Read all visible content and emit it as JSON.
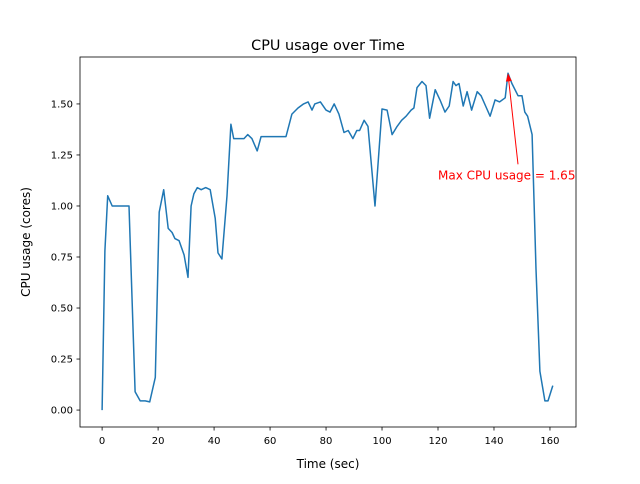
{
  "chart_data": {
    "type": "line",
    "title": "CPU usage over Time",
    "xlabel": "Time (sec)",
    "ylabel": "CPU usage (cores)",
    "xlim": [
      -7.9,
      169.3
    ],
    "ylim": [
      -0.083,
      1.73
    ],
    "xticks": [
      0,
      20,
      40,
      60,
      80,
      100,
      120,
      140,
      160
    ],
    "xtick_labels": [
      "0",
      "20",
      "40",
      "60",
      "80",
      "100",
      "120",
      "140",
      "160"
    ],
    "yticks": [
      0,
      0.25,
      0.5,
      0.75,
      1.0,
      1.25,
      1.5
    ],
    "ytick_labels": [
      "0.00",
      "0.25",
      "0.50",
      "0.75",
      "1.00",
      "1.25",
      "1.50"
    ],
    "grid": false,
    "series": [
      {
        "color": "#1f77b4",
        "x": [
          0,
          1,
          2,
          3.6,
          6.4,
          9.6,
          11.8,
          13.6,
          15.4,
          17,
          19,
          20.4,
          22,
          23.6,
          25,
          26,
          27.5,
          29.3,
          30.7,
          31.8,
          32.8,
          34,
          35.4,
          37,
          38.6,
          40.4,
          41.4,
          42.8,
          44.6,
          46,
          47,
          48.6,
          50.7,
          52,
          53.5,
          55.4,
          56.8,
          65.7,
          67.8,
          70,
          72,
          73.6,
          75,
          76,
          78,
          80,
          81.4,
          82.9,
          84.6,
          86.4,
          87.9,
          89.6,
          91,
          92,
          93.6,
          95,
          97.5,
          100,
          101.8,
          103.6,
          105.4,
          107,
          108.6,
          110.4,
          111.4,
          112.5,
          114.3,
          115.7,
          117,
          119,
          120.7,
          122.5,
          124,
          125.4,
          126.4,
          127.5,
          129,
          130.4,
          132,
          134,
          135.4,
          137,
          138.6,
          140.4,
          142,
          144,
          145,
          146.4,
          148.6,
          150,
          151,
          152,
          153.6,
          155,
          156.4,
          158.2,
          159.3,
          161
        ],
        "y": [
          0,
          0.78,
          1.05,
          1.0,
          1.0,
          1.0,
          0.09,
          0.045,
          0.045,
          0.04,
          0.16,
          0.97,
          1.08,
          0.89,
          0.87,
          0.84,
          0.83,
          0.76,
          0.65,
          1.0,
          1.06,
          1.09,
          1.08,
          1.09,
          1.08,
          0.94,
          0.77,
          0.74,
          1.05,
          1.4,
          1.33,
          1.33,
          1.33,
          1.35,
          1.33,
          1.27,
          1.34,
          1.34,
          1.45,
          1.48,
          1.5,
          1.51,
          1.47,
          1.5,
          1.51,
          1.47,
          1.46,
          1.5,
          1.45,
          1.36,
          1.37,
          1.33,
          1.37,
          1.37,
          1.42,
          1.39,
          1.0,
          1.475,
          1.47,
          1.35,
          1.39,
          1.42,
          1.44,
          1.47,
          1.48,
          1.58,
          1.61,
          1.59,
          1.43,
          1.57,
          1.52,
          1.46,
          1.49,
          1.61,
          1.59,
          1.6,
          1.49,
          1.56,
          1.47,
          1.56,
          1.54,
          1.49,
          1.44,
          1.52,
          1.51,
          1.53,
          1.65,
          1.6,
          1.54,
          1.54,
          1.46,
          1.44,
          1.35,
          0.69,
          0.19,
          0.045,
          0.045,
          0.12
        ]
      }
    ],
    "annotations": [
      {
        "text": "Max CPU usage = 1.65",
        "xy": [
          145,
          1.65
        ],
        "xytext": [
          120,
          1.15
        ],
        "color": "#ff0000"
      }
    ]
  }
}
